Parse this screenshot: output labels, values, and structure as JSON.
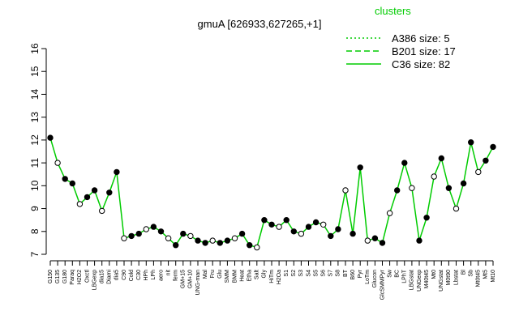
{
  "chart_data": {
    "type": "line",
    "title": "gmuA [626933,627265,+1]",
    "xlabel": "",
    "ylabel": "",
    "ylim": [
      7,
      16
    ],
    "yticks": [
      7,
      8,
      9,
      10,
      11,
      12,
      13,
      14,
      15,
      16
    ],
    "grid": false,
    "legend_position": "top-right",
    "legend_title": "clusters",
    "colors": {
      "series": "#00cc00",
      "points_fill": "#000000",
      "points_open": "#ffffff",
      "axis": "#000000"
    },
    "series": [
      {
        "name": "A386 size: 5",
        "dash": "dotted"
      },
      {
        "name": "B201 size: 17",
        "dash": "dashed"
      },
      {
        "name": "C36 size: 82",
        "dash": "solid"
      }
    ],
    "x_tick_labels": [
      "G150",
      "G135",
      "G180",
      "Paraq",
      "H2O2",
      "Oxctl",
      "LBGexp",
      "dia15",
      "Diami",
      "dia5",
      "C90",
      "Cold",
      "C30",
      "HPh",
      "LPh",
      "aero",
      "nit",
      "ferm",
      "GM+15",
      "GM+10",
      "UNG-man",
      "Mal",
      "Fru",
      "Glu",
      "SMM",
      "BMM",
      "Heat",
      "Etha",
      "Salt",
      "Gly",
      "HiTm",
      "H2Oa",
      "S1",
      "S2",
      "S3",
      "S4",
      "S5",
      "S6",
      "S7",
      "S8",
      "BT",
      "B60",
      "Pyr",
      "LoTm",
      "Glucon",
      "GlcSMMPyr",
      "Sw",
      "BC",
      "LPhT",
      "LBGstat",
      "UNGexp",
      "M40t45",
      "Mt0",
      "UNGstat",
      "M0t90",
      "Lbstat",
      "Bl",
      "Sb",
      "Mt0t45",
      "Mt5",
      "Mt10"
    ],
    "y_values": [
      12.1,
      11.0,
      10.3,
      10.1,
      9.2,
      9.5,
      9.8,
      8.9,
      9.7,
      10.6,
      7.7,
      7.8,
      7.9,
      8.1,
      8.2,
      8.0,
      7.7,
      7.4,
      7.9,
      7.8,
      7.6,
      7.5,
      7.6,
      7.5,
      7.6,
      7.7,
      7.9,
      7.4,
      7.3,
      8.5,
      8.3,
      8.2,
      8.5,
      8.0,
      7.9,
      8.2,
      8.4,
      8.3,
      7.8,
      8.1,
      9.8,
      7.9,
      10.8,
      7.6,
      7.7,
      7.5,
      8.8,
      9.8,
      11.0,
      9.9,
      7.6,
      8.6,
      10.4,
      11.2,
      9.9,
      9.0,
      10.1,
      11.9,
      10.6,
      11.1,
      11.7
    ]
  }
}
